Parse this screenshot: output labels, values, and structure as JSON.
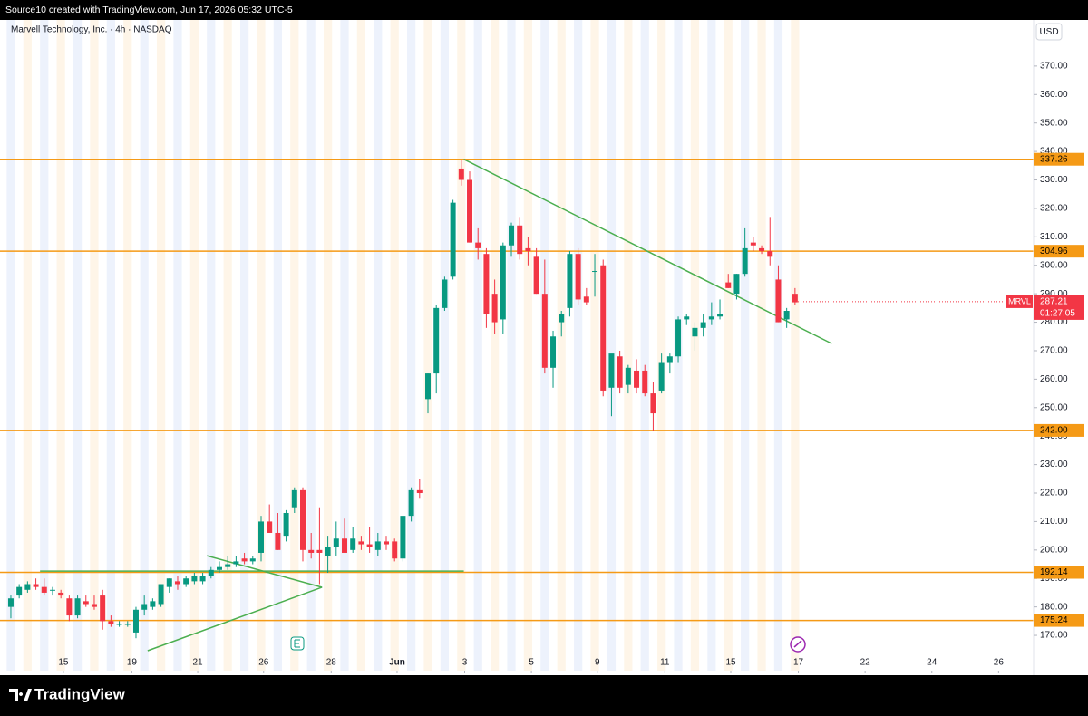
{
  "header": {
    "source": "Source10 created with TradingView.com, Jun 17, 2026 05:32 UTC-5",
    "brand": "TradingView"
  },
  "chart_data": {
    "type": "candlestick",
    "title": "Marvell Technology, Inc. · 4h · NASDAQ",
    "currency": "USD",
    "symbol": "MRVL",
    "countdown": "01:27:05",
    "last_price": 287.21,
    "colors": {
      "up": "#089981",
      "down": "#f23645",
      "level": "#f59a16",
      "trend": "#4caf50"
    },
    "open": [
      180,
      184,
      186,
      188,
      187,
      186,
      185,
      183,
      177,
      182,
      181,
      184,
      175,
      174,
      174,
      171,
      179,
      180,
      181,
      187,
      189,
      188,
      189,
      189,
      191,
      193,
      194,
      195,
      197,
      196,
      199,
      210,
      206,
      205,
      215,
      221,
      200,
      200,
      198,
      201,
      204,
      200,
      203,
      202,
      200,
      203,
      203,
      197,
      212,
      221,
      253,
      262,
      285,
      296,
      334,
      330,
      308,
      304,
      290,
      281,
      307,
      314,
      306,
      303,
      290,
      264,
      280,
      285,
      304,
      289,
      298,
      300,
      257,
      268,
      258,
      263,
      263,
      255,
      256,
      266,
      268,
      281,
      275,
      278,
      281,
      282,
      294,
      290,
      297,
      308,
      306,
      305,
      295,
      281,
      290
    ],
    "high": [
      184,
      188,
      189,
      190,
      190,
      187,
      186,
      184,
      184,
      184,
      184,
      186,
      177,
      175,
      175,
      180,
      184,
      183,
      188,
      190,
      191,
      191,
      192,
      192,
      194,
      196,
      198,
      198,
      199,
      198,
      212,
      216,
      213,
      214,
      222,
      222,
      206,
      215,
      205,
      210,
      211,
      208,
      205,
      208,
      206,
      205,
      204,
      212,
      222,
      225,
      262,
      286,
      296,
      323,
      337,
      333,
      313,
      306,
      295,
      308,
      315,
      317,
      310,
      306,
      302,
      277,
      284,
      305,
      306,
      292,
      304,
      302,
      268,
      270,
      265,
      267,
      265,
      259,
      269,
      269,
      282,
      283,
      280,
      283,
      287,
      288,
      297,
      297,
      313,
      310,
      307,
      317,
      300,
      285,
      292
    ],
    "low": [
      176,
      183,
      185,
      186,
      184,
      184,
      183,
      175,
      176,
      180,
      179,
      172,
      173,
      173,
      173,
      169,
      177,
      179,
      180,
      185,
      186,
      187,
      188,
      188,
      190,
      192,
      193,
      194,
      195,
      195,
      196,
      206,
      200,
      203,
      213,
      196,
      197,
      188,
      192,
      198,
      200,
      199,
      200,
      199,
      198,
      200,
      196,
      196,
      210,
      218,
      248,
      255,
      284,
      295,
      328,
      308,
      302,
      278,
      276,
      276,
      303,
      302,
      300,
      290,
      262,
      257,
      275,
      282,
      286,
      286,
      289,
      254,
      247,
      255,
      255,
      255,
      254,
      242,
      255,
      262,
      266,
      279,
      270,
      275,
      279,
      281,
      292,
      288,
      296,
      305,
      304,
      300,
      280,
      278,
      286
    ],
    "close": [
      183,
      187,
      188,
      187,
      185,
      186,
      184,
      177,
      183,
      181,
      180,
      175,
      174,
      174,
      174,
      179,
      181,
      182,
      188,
      190,
      188,
      190,
      191,
      191,
      193,
      194,
      195,
      196,
      196,
      197,
      210,
      206,
      200,
      213,
      221,
      200,
      199,
      199,
      201,
      204,
      199,
      204,
      202,
      201,
      203,
      202,
      197,
      212,
      221,
      220,
      262,
      285,
      295,
      322,
      330,
      308,
      306,
      283,
      280,
      307,
      314,
      304,
      305,
      290,
      264,
      275,
      283,
      304,
      288,
      287,
      298,
      256,
      269,
      257,
      264,
      257,
      255,
      248,
      266,
      268,
      281,
      282,
      278,
      280,
      282,
      283,
      292,
      297,
      306,
      307,
      305,
      303,
      280,
      284,
      287
    ],
    "xlim": [
      -1.3,
      122.6
    ],
    "xticks": [
      {
        "value": 6.3,
        "label": "15"
      },
      {
        "value": 14.5,
        "label": "19"
      },
      {
        "value": 22.4,
        "label": "21"
      },
      {
        "value": 30.3,
        "label": "26"
      },
      {
        "value": 38.4,
        "label": "28"
      },
      {
        "value": 46.3,
        "label": "Jun"
      },
      {
        "value": 54.4,
        "label": "3"
      },
      {
        "value": 62.4,
        "label": "5"
      },
      {
        "value": 70.3,
        "label": "9"
      },
      {
        "value": 78.4,
        "label": "11"
      },
      {
        "value": 86.3,
        "label": "15"
      },
      {
        "value": 94.4,
        "label": "17"
      },
      {
        "value": 102.4,
        "label": "22"
      },
      {
        "value": 110.4,
        "label": "24"
      },
      {
        "value": 118.4,
        "label": "26"
      }
    ],
    "ylim": [
      157.6,
      386.2
    ],
    "yticks": [
      {
        "value": 170,
        "label": "170.00"
      },
      {
        "value": 180,
        "label": "180.00"
      },
      {
        "value": 190,
        "label": "190.00"
      },
      {
        "value": 200,
        "label": "200.00"
      },
      {
        "value": 210,
        "label": "210.00"
      },
      {
        "value": 220,
        "label": "220.00"
      },
      {
        "value": 230,
        "label": "230.00"
      },
      {
        "value": 240,
        "label": "240.00"
      },
      {
        "value": 250,
        "label": "250.00"
      },
      {
        "value": 260,
        "label": "260.00"
      },
      {
        "value": 270,
        "label": "270.00"
      },
      {
        "value": 280,
        "label": "280.00"
      },
      {
        "value": 290,
        "label": "290.00"
      },
      {
        "value": 300,
        "label": "300.00"
      },
      {
        "value": 310,
        "label": "310.00"
      },
      {
        "value": 320,
        "label": "320.00"
      },
      {
        "value": 330,
        "label": "330.00"
      },
      {
        "value": 340,
        "label": "340.00"
      },
      {
        "value": 350,
        "label": "350.00"
      },
      {
        "value": 360,
        "label": "360.00"
      },
      {
        "value": 370,
        "label": "370.00"
      }
    ],
    "levels": [
      {
        "value": 337.26
      },
      {
        "value": 304.96
      },
      {
        "value": 242,
        "label": "242.00"
      },
      {
        "value": 192.14
      },
      {
        "value": 175.24
      }
    ],
    "trendlines": [
      {
        "x": [
          54.3,
          98.4
        ],
        "y": [
          337.26,
          272.5
        ]
      },
      {
        "x": [
          3.5,
          54.3
        ],
        "y": [
          192.6,
          192.6
        ]
      },
      {
        "x": [
          23.5,
          37.3
        ],
        "y": [
          198,
          186.9
        ]
      },
      {
        "x": [
          16.4,
          37.3
        ],
        "y": [
          164.6,
          186.9
        ]
      }
    ]
  }
}
